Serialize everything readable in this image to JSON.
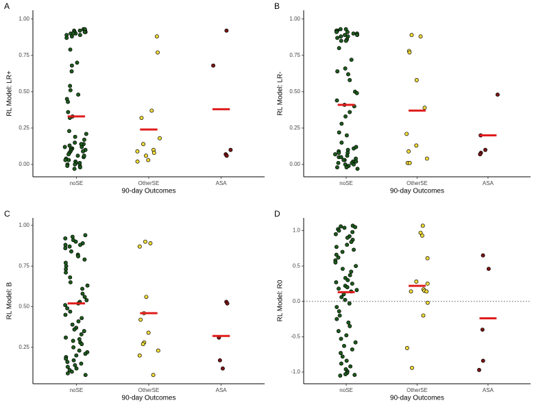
{
  "chart_data": [
    {
      "type": "strip",
      "panel": "A",
      "ylabel": "RL Model: LR+",
      "xlabel": "90-day Outcomes",
      "categories": [
        "noSE",
        "OtherSE",
        "ASA"
      ],
      "colors": [
        "#1d5c1d",
        "#f2dc3c",
        "#7a1515"
      ],
      "mean_color": "#e01b1b",
      "groups": [
        [
          0.93,
          0.92,
          0.92,
          0.91,
          0.91,
          0.9,
          0.9,
          0.89,
          0.89,
          0.88,
          0.93,
          0.92,
          0.91,
          0.9,
          0.87,
          0.79,
          0.7,
          0.68,
          0.64,
          0.54,
          0.51,
          0.48,
          0.45,
          0.43,
          0.36,
          0.33,
          0.32,
          0.23,
          0.21,
          0.19,
          0.17,
          0.15,
          0.14,
          0.13,
          0.12,
          0.12,
          0.11,
          0.11,
          0.1,
          0.1,
          0.09,
          0.09,
          0.08,
          0.07,
          0.06,
          0.05,
          0.04,
          0.03,
          0.03,
          0.02,
          0.01,
          0.01,
          0.0,
          0.0,
          -0.01,
          -0.01,
          -0.02,
          -0.03,
          0.06,
          0.14
        ],
        [
          0.88,
          0.77,
          0.37,
          0.32,
          0.18,
          0.14,
          0.1,
          0.09,
          0.08,
          0.06,
          0.03,
          0.02
        ],
        [
          0.92,
          0.68,
          0.1,
          0.07,
          0.06
        ]
      ],
      "means": [
        0.33,
        0.24,
        0.38
      ],
      "ylim": [
        -0.085,
        1.06
      ],
      "yticks": [
        {
          "value": 0,
          "label": "0.00"
        },
        {
          "value": 0.25,
          "label": "0.25"
        },
        {
          "value": 0.5,
          "label": "0.50"
        },
        {
          "value": 0.75,
          "label": "0.75"
        },
        {
          "value": 1,
          "label": "1.00"
        }
      ]
    },
    {
      "type": "strip",
      "panel": "B",
      "ylabel": "RL Model: LR-",
      "xlabel": "90-day Outcomes",
      "categories": [
        "noSE",
        "OtherSE",
        "ASA"
      ],
      "colors": [
        "#1d5c1d",
        "#f2dc3c",
        "#7a1515"
      ],
      "mean_color": "#e01b1b",
      "groups": [
        [
          0.93,
          0.93,
          0.92,
          0.92,
          0.91,
          0.91,
          0.9,
          0.9,
          0.89,
          0.89,
          0.88,
          0.88,
          0.87,
          0.86,
          0.85,
          0.85,
          0.8,
          0.72,
          0.64,
          0.62,
          0.58,
          0.5,
          0.49,
          0.44,
          0.41,
          0.4,
          0.33,
          0.28,
          0.22,
          0.2,
          0.15,
          0.11,
          0.1,
          0.09,
          0.08,
          0.08,
          0.07,
          0.06,
          0.05,
          0.04,
          0.03,
          0.03,
          0.02,
          0.02,
          0.01,
          0.01,
          0.0,
          0.0,
          -0.01,
          -0.02,
          -0.02,
          -0.03,
          0.12,
          0.05,
          0.36,
          0.66
        ],
        [
          0.89,
          0.88,
          0.78,
          0.77,
          0.58,
          0.39,
          0.21,
          0.13,
          0.09,
          0.04,
          0.01,
          0.01
        ],
        [
          0.48,
          0.2,
          0.1,
          0.08,
          0.07
        ]
      ],
      "means": [
        0.41,
        0.37,
        0.2
      ],
      "ylim": [
        -0.085,
        1.06
      ],
      "yticks": [
        {
          "value": 0,
          "label": "0.00"
        },
        {
          "value": 0.25,
          "label": "0.25"
        },
        {
          "value": 0.5,
          "label": "0.50"
        },
        {
          "value": 0.75,
          "label": "0.75"
        },
        {
          "value": 1,
          "label": "1.00"
        }
      ]
    },
    {
      "type": "strip",
      "panel": "C",
      "ylabel": "RL Model: B",
      "xlabel": "90-day Outcomes",
      "categories": [
        "noSE",
        "OtherSE",
        "ASA"
      ],
      "colors": [
        "#1d5c1d",
        "#f2dc3c",
        "#7a1515"
      ],
      "mean_color": "#e01b1b",
      "groups": [
        [
          0.94,
          0.93,
          0.92,
          0.91,
          0.9,
          0.89,
          0.88,
          0.88,
          0.87,
          0.86,
          0.84,
          0.82,
          0.81,
          0.79,
          0.77,
          0.75,
          0.73,
          0.71,
          0.68,
          0.65,
          0.63,
          0.61,
          0.58,
          0.56,
          0.54,
          0.53,
          0.52,
          0.51,
          0.49,
          0.47,
          0.45,
          0.43,
          0.41,
          0.39,
          0.37,
          0.35,
          0.33,
          0.31,
          0.3,
          0.29,
          0.28,
          0.27,
          0.25,
          0.23,
          0.22,
          0.21,
          0.2,
          0.19,
          0.18,
          0.17,
          0.16,
          0.15,
          0.14,
          0.13,
          0.12,
          0.11,
          0.1,
          0.09,
          0.08,
          0.36
        ],
        [
          0.9,
          0.89,
          0.87,
          0.56,
          0.46,
          0.42,
          0.34,
          0.28,
          0.27,
          0.23,
          0.2,
          0.08
        ],
        [
          0.53,
          0.52,
          0.31,
          0.17,
          0.12
        ]
      ],
      "means": [
        0.52,
        0.46,
        0.32
      ],
      "ylim": [
        0.026,
        1.046
      ],
      "yticks": [
        {
          "value": 0.25,
          "label": "0.25"
        },
        {
          "value": 0.5,
          "label": "0.50"
        },
        {
          "value": 0.75,
          "label": "0.75"
        },
        {
          "value": 1,
          "label": "1.00"
        }
      ]
    },
    {
      "type": "strip",
      "panel": "D",
      "ylabel": "RL Model: R0",
      "xlabel": "90-day Outcomes",
      "categories": [
        "noSE",
        "OtherSE",
        "ASA"
      ],
      "colors": [
        "#1d5c1d",
        "#f2dc3c",
        "#7a1515"
      ],
      "mean_color": "#e01b1b",
      "groups": [
        [
          1.07,
          1.06,
          1.05,
          1.04,
          1.02,
          1.0,
          0.98,
          0.95,
          0.92,
          0.9,
          0.87,
          0.84,
          0.8,
          0.77,
          0.73,
          0.7,
          0.66,
          0.62,
          0.58,
          0.55,
          0.5,
          0.46,
          0.42,
          0.37,
          0.33,
          0.3,
          0.27,
          0.25,
          0.22,
          0.2,
          0.18,
          0.16,
          0.14,
          0.1,
          0.06,
          0.02,
          -0.03,
          -0.08,
          -0.14,
          -0.2,
          -0.25,
          -0.3,
          -0.35,
          -0.42,
          -0.48,
          -0.53,
          -0.58,
          -0.63,
          -0.68,
          -0.73,
          -0.78,
          -0.84,
          -0.88,
          -0.92,
          -0.96,
          -0.99,
          -1.01,
          -1.03,
          -1.04,
          -1.05
        ],
        [
          1.07,
          0.97,
          0.93,
          0.61,
          0.28,
          0.25,
          0.17,
          0.15,
          0.14,
          0.14,
          -0.02,
          -0.2,
          -0.66,
          -0.94
        ],
        [
          0.65,
          0.46,
          -0.4,
          -0.84,
          -0.97
        ]
      ],
      "means": [
        0.13,
        0.22,
        -0.24
      ],
      "hline": 0,
      "ylim": [
        -1.165,
        1.18
      ],
      "yticks": [
        {
          "value": -1,
          "label": "-1.0"
        },
        {
          "value": -0.5,
          "label": "-0.5"
        },
        {
          "value": 0,
          "label": "0.0"
        },
        {
          "value": 0.5,
          "label": "0.5"
        },
        {
          "value": 1,
          "label": "1.0"
        }
      ]
    }
  ]
}
